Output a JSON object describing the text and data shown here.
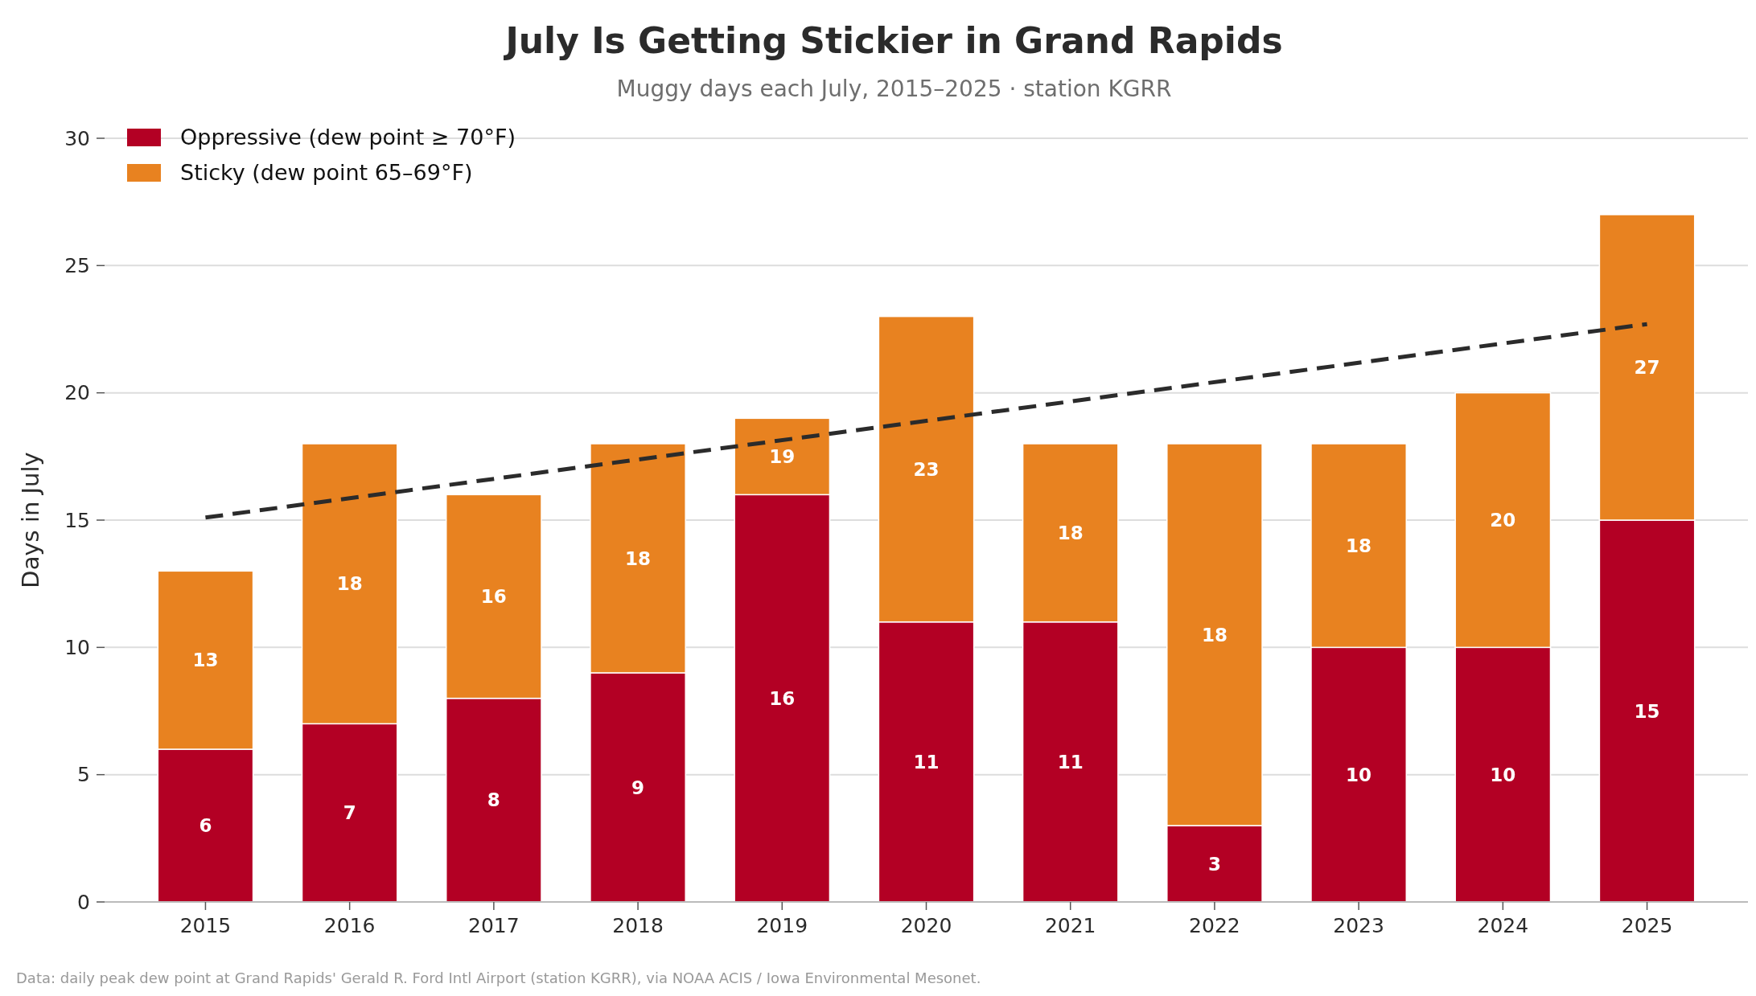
{
  "chart_data": {
    "type": "bar",
    "title": "July Is Getting Stickier in Grand Rapids",
    "subtitle": "Muggy days each July, 2015–2025  ·  station KGRR",
    "ylabel": "Days in July",
    "categories": [
      "2015",
      "2016",
      "2017",
      "2018",
      "2019",
      "2020",
      "2021",
      "2022",
      "2023",
      "2024",
      "2025"
    ],
    "stacked": true,
    "series": [
      {
        "name": "Oppressive  (dew point ≥ 70°F)",
        "color": "#b30024",
        "values": [
          6,
          7,
          8,
          9,
          16,
          11,
          11,
          3,
          10,
          10,
          15
        ],
        "value_labels": [
          "6",
          "7",
          "8",
          "9",
          "16",
          "11",
          "11",
          "3",
          "10",
          "10",
          "15"
        ]
      },
      {
        "name": "Sticky  (dew point 65–69°F)",
        "color": "#e88220",
        "values": [
          7,
          11,
          8,
          9,
          3,
          12,
          7,
          15,
          8,
          10,
          12
        ]
      },
      {
        "type": "line",
        "color": "#2b2b2b",
        "line_style": "dashed",
        "values": [
          15.1,
          null,
          null,
          null,
          null,
          null,
          null,
          null,
          null,
          null,
          22.7
        ]
      }
    ],
    "totals": [
      "13",
      "18",
      "16",
      "18",
      "19",
      "23",
      "18",
      "18",
      "18",
      "20",
      "27"
    ],
    "ylim": [
      0,
      30
    ],
    "yticks": [
      0,
      5,
      10,
      15,
      20,
      25,
      30
    ],
    "grid": "y",
    "legend": "top left",
    "annotations": [
      "Data: daily peak dew point at Grand Rapids' Gerald R. Ford Intl Airport (station KGRR), via NOAA ACIS / Iowa Environmental Mesonet."
    ]
  }
}
